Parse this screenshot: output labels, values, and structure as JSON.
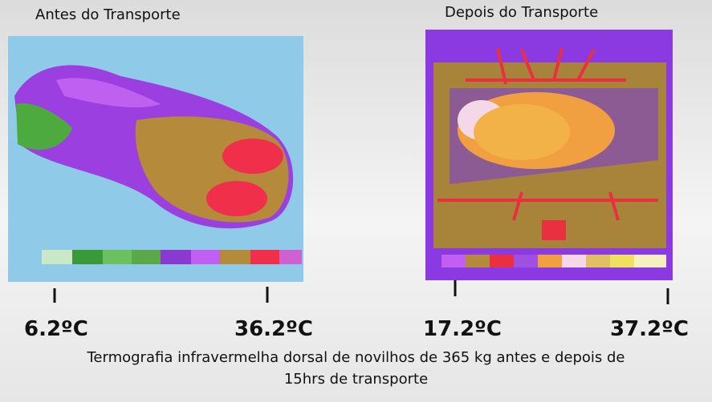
{
  "panels": [
    {
      "title": "Antes do Transporte",
      "scale_min": "6.2ºC",
      "scale_max": "36.2ºC"
    },
    {
      "title": "Depois do Transporte",
      "scale_min": "17.2ºC",
      "scale_max": "37.2ºC"
    }
  ],
  "caption": {
    "lines": [
      "Termografia infravermelha dorsal de novilhos de 365 kg antes e depois de",
      "15hrs de transporte"
    ]
  }
}
